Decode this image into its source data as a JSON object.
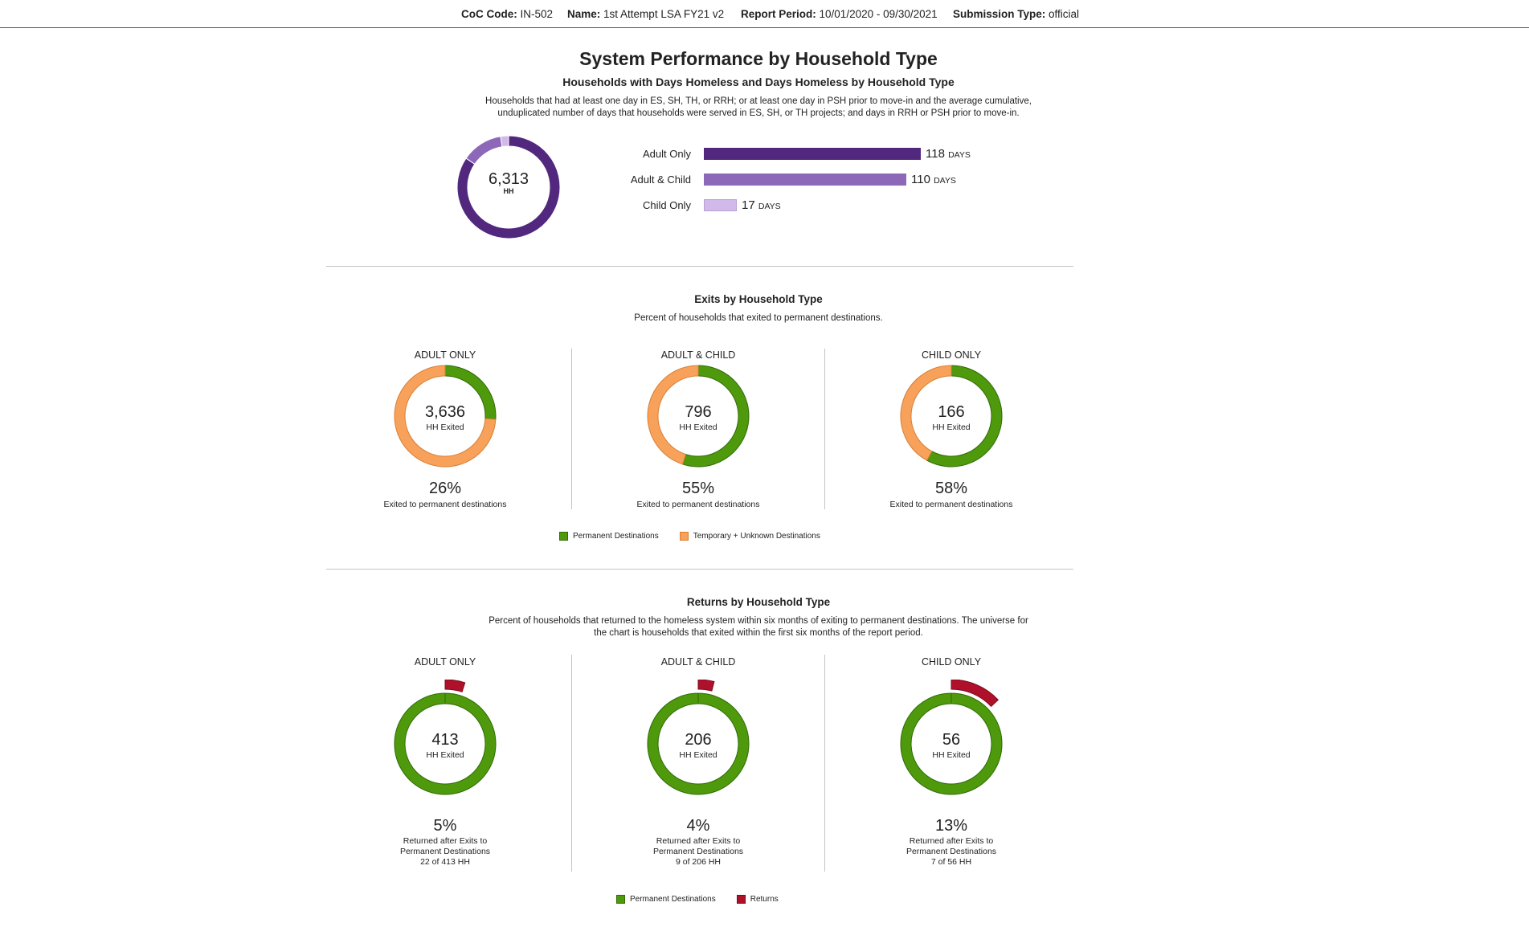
{
  "header": {
    "coc_label": "CoC Code:",
    "coc_value": "IN-502",
    "name_label": "Name:",
    "name_value": "1st Attempt LSA FY21 v2",
    "period_label": "Report Period:",
    "period_value": "10/01/2020 - 09/30/2021",
    "submission_label": "Submission Type:",
    "submission_value": "official"
  },
  "page_title": "System Performance by Household Type",
  "section1": {
    "title": "Households with Days Homeless and Days Homeless by Household Type",
    "desc_line1": "Households that had at least one day in ES, SH, TH, or RRH; or at least one day in PSH prior to move-in and the average cumulative,",
    "desc_line2": "unduplicated number of days that households were served in ES, SH, or TH projects; and days in RRH or PSH prior to move-in.",
    "total_value": "6,313",
    "total_unit": "HH",
    "days_unit": "DAYS"
  },
  "section2": {
    "title": "Exits by Household Type",
    "desc": "Percent of households that exited to permanent destinations.",
    "legend": [
      "Permanent Destinations",
      "Temporary + Unknown Destinations"
    ]
  },
  "section3": {
    "title": "Returns by Household Type",
    "desc_line1": "Percent of households that returned to the homeless system within six months of exiting to permanent destinations. The universe for",
    "desc_line2": "the chart is households that exited within the first six months of the report period.",
    "legend": [
      "Permanent Destinations",
      "Returns"
    ]
  },
  "colors": {
    "adult_only": "#52287e",
    "adult_child": "#8e68b8",
    "child_only": "#d1b9ea",
    "permanent": "#4e9a0c",
    "temporary": "#f7a15a",
    "returns": "#b0112a"
  },
  "chart_data": [
    {
      "type": "pie",
      "title": "Households with Days Homeless and Days Homeless by Household Type",
      "categories": [
        "Adult Only",
        "Adult & Child",
        "Child Only"
      ],
      "values": [
        0.845,
        0.13,
        0.025
      ],
      "center_value": "6,313",
      "center_unit": "HH"
    },
    {
      "type": "bar",
      "orientation": "horizontal",
      "categories": [
        "Adult Only",
        "Adult & Child",
        "Child Only"
      ],
      "values": [
        118,
        110,
        17
      ],
      "unit": "DAYS"
    },
    {
      "type": "pie",
      "title": "Exits by Household Type",
      "panels": [
        {
          "label": "ADULT ONLY",
          "count": "3,636",
          "count_label": "HH Exited",
          "pct_value": 26,
          "pct": "26%",
          "caption": "Exited to permanent destinations"
        },
        {
          "label": "ADULT & CHILD",
          "count": "796",
          "count_label": "HH Exited",
          "pct_value": 55,
          "pct": "55%",
          "caption": "Exited to permanent destinations"
        },
        {
          "label": "CHILD ONLY",
          "count": "166",
          "count_label": "HH Exited",
          "pct_value": 58,
          "pct": "58%",
          "caption": "Exited to permanent destinations"
        }
      ],
      "series": [
        "Permanent Destinations",
        "Temporary + Unknown Destinations"
      ]
    },
    {
      "type": "pie",
      "title": "Returns by Household Type",
      "panels": [
        {
          "label": "ADULT ONLY",
          "count": "413",
          "count_label": "HH Exited",
          "pct_value": 5,
          "pct": "5%",
          "caption1": "Returned after Exits to",
          "caption2": "Permanent Destinations",
          "caption3": "22 of 413 HH"
        },
        {
          "label": "ADULT & CHILD",
          "count": "206",
          "count_label": "HH Exited",
          "pct_value": 4,
          "pct": "4%",
          "caption1": "Returned after Exits to",
          "caption2": "Permanent Destinations",
          "caption3": "9 of 206 HH"
        },
        {
          "label": "CHILD ONLY",
          "count": "56",
          "count_label": "HH Exited",
          "pct_value": 13,
          "pct": "13%",
          "caption1": "Returned after Exits to",
          "caption2": "Permanent Destinations",
          "caption3": "7 of 56 HH"
        }
      ],
      "series": [
        "Permanent Destinations",
        "Returns"
      ]
    }
  ]
}
